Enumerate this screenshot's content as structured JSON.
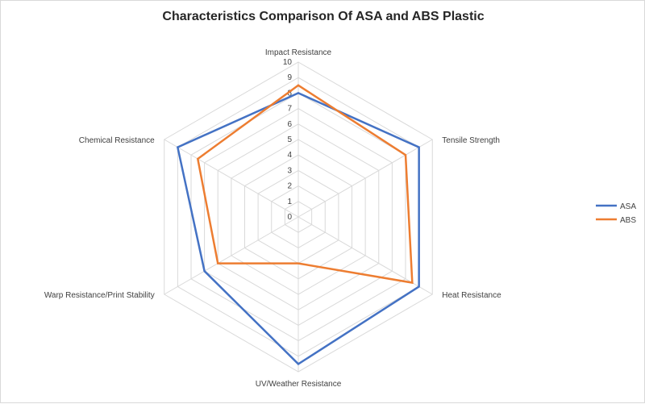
{
  "chart_data": {
    "type": "radar",
    "title": "Characteristics Comparison Of ASA and ABS Plastic",
    "categories": [
      "Impact Resistance",
      "Tensile Strength",
      "Heat Resistance",
      "UV/Weather Resistance",
      "Warp Resistance/Print Stability",
      "Chemical Resistance"
    ],
    "r_range": [
      0,
      10
    ],
    "ticks": [
      "0",
      "1",
      "2",
      "3",
      "4",
      "5",
      "6",
      "7",
      "8",
      "9",
      "10"
    ],
    "grid": true,
    "legend_position": "right",
    "series": [
      {
        "name": "ASA",
        "color": "#4472c4",
        "values": [
          8,
          9,
          9,
          9.5,
          7,
          9
        ]
      },
      {
        "name": "ABS",
        "color": "#ed7d31",
        "values": [
          8.5,
          8,
          8.5,
          3,
          6,
          7.5
        ]
      }
    ]
  }
}
